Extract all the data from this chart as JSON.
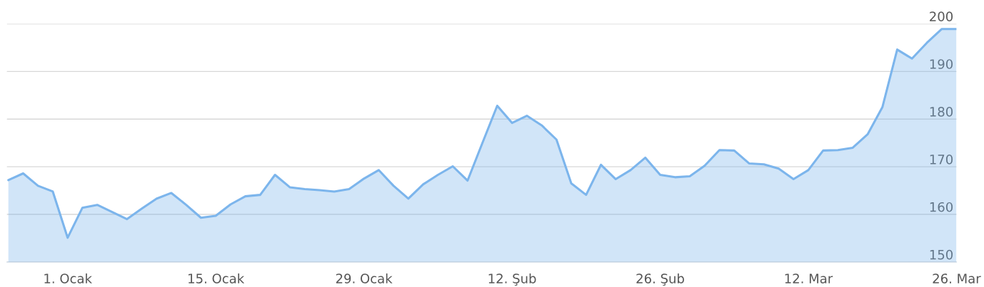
{
  "chart_data": {
    "type": "area",
    "categories": [
      null,
      null,
      null,
      null,
      "1. Ocak",
      null,
      null,
      null,
      null,
      null,
      null,
      null,
      null,
      null,
      "15. Ocak",
      null,
      null,
      null,
      null,
      null,
      null,
      null,
      null,
      null,
      "29. Ocak",
      null,
      null,
      null,
      null,
      null,
      null,
      null,
      null,
      null,
      "12. Şub",
      null,
      null,
      null,
      null,
      null,
      null,
      null,
      null,
      null,
      "26. Şub",
      null,
      null,
      null,
      null,
      null,
      null,
      null,
      null,
      null,
      "12. Mar",
      null,
      null,
      null,
      null,
      null,
      null,
      null,
      null,
      null,
      "26. Mar"
    ],
    "series": [
      {
        "color": "#7cb5ec",
        "values": [
          167.2,
          168.6,
          166.0,
          164.8,
          155.1,
          161.4,
          162.0,
          160.5,
          159.0,
          161.2,
          163.3,
          164.5,
          162.0,
          159.3,
          159.7,
          162.1,
          163.8,
          164.1,
          168.3,
          165.7,
          165.3,
          165.1,
          164.8,
          165.3,
          167.5,
          169.3,
          166.0,
          163.3,
          166.3,
          168.3,
          170.1,
          167.1,
          175.0,
          182.8,
          179.2,
          180.7,
          178.7,
          175.7,
          166.5,
          164.1,
          170.4,
          167.4,
          169.3,
          171.9,
          168.3,
          167.8,
          168.0,
          170.2,
          173.5,
          173.4,
          170.7,
          170.5,
          169.6,
          167.4,
          169.3,
          173.4,
          173.5,
          174.0,
          176.8,
          182.5,
          194.6,
          192.7,
          196.0,
          198.9,
          198.9
        ]
      }
    ],
    "ylim": [
      150,
      200
    ],
    "yticks": [
      150,
      160,
      170,
      180,
      190,
      200
    ],
    "grid": "y"
  }
}
